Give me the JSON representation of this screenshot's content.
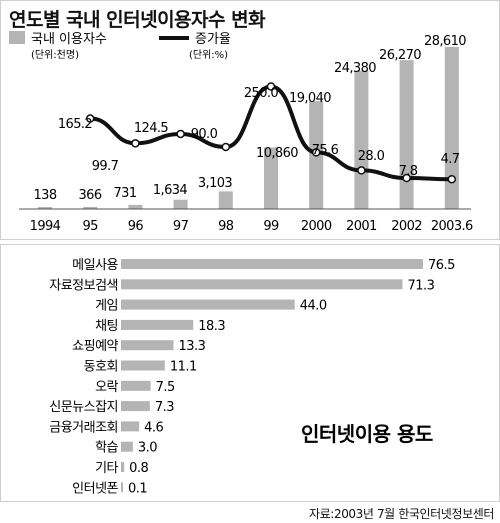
{
  "title": "연도별 국내 인터넷이용자수 변화",
  "source": "자료:2003년 7월 한국인터넷정보센터",
  "colors": {
    "bar": "#b4b4b4",
    "line": "#111111",
    "marker_fill": "#ffffff"
  },
  "chart_data": [
    {
      "type": "bar+line",
      "title": "연도별 국내 인터넷이용자수 변화",
      "categories": [
        "1994",
        "95",
        "96",
        "97",
        "98",
        "99",
        "2000",
        "2001",
        "2002",
        "2003.6"
      ],
      "series": [
        {
          "name": "국내 이용자수",
          "unit": "(단위:천명)",
          "type": "bar",
          "values": [
            138,
            366,
            731,
            1634,
            3103,
            10860,
            19040,
            24380,
            26270,
            28610
          ],
          "labels": [
            "138",
            "366",
            "731",
            "1,634",
            "3,103",
            "10,860",
            "19,040",
            "24,380",
            "26,270",
            "28,610"
          ]
        },
        {
          "name": "증가율",
          "unit": "(단위:%)",
          "type": "line",
          "x": [
            "95",
            "96",
            "97",
            "98",
            "99",
            "2000",
            "2001",
            "2002",
            "2003.6"
          ],
          "values": [
            165.2,
            99.7,
            124.5,
            90.0,
            250.0,
            75.6,
            28.0,
            7.8,
            4.7
          ],
          "labels": [
            "165.2",
            "99.7",
            "124.5",
            "90.0",
            "250.0",
            "75.6",
            "28.0",
            "7.8",
            "4.7"
          ]
        }
      ],
      "legend": "top-left"
    },
    {
      "type": "bar",
      "orientation": "horizontal",
      "title": "인터넷이용 용도",
      "categories": [
        "메일사용",
        "자료정보검색",
        "게임",
        "채팅",
        "쇼핑예약",
        "동호회",
        "오락",
        "신문뉴스잡지",
        "금융거래조회",
        "학습",
        "기타",
        "인터넷폰"
      ],
      "values": [
        76.5,
        71.3,
        44.0,
        18.3,
        13.3,
        11.1,
        7.5,
        7.3,
        4.6,
        3.0,
        0.8,
        0.1
      ],
      "labels": [
        "76.5",
        "71.3",
        "44.0",
        "18.3",
        "13.3",
        "11.1",
        "7.5",
        "7.3",
        "4.6",
        "3.0",
        "0.8",
        "0.1"
      ]
    }
  ]
}
